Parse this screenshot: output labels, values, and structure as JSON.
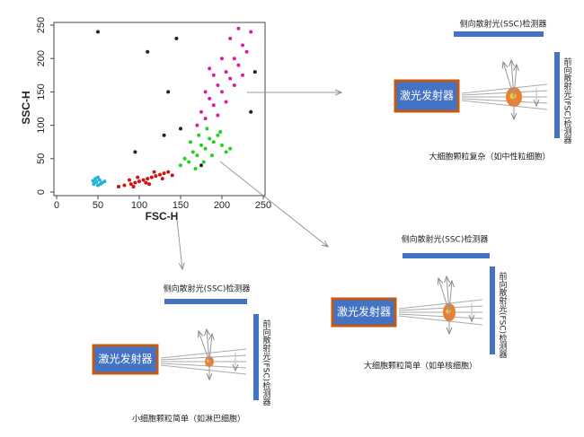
{
  "chart_data": {
    "type": "scatter",
    "x_label": "FSC-H",
    "y_label": "SSC-H",
    "xlim": [
      0,
      250
    ],
    "ylim": [
      0,
      250
    ],
    "xticks": [
      0,
      50,
      100,
      150,
      200,
      250
    ],
    "yticks": [
      0,
      50,
      100,
      150,
      200,
      250
    ],
    "series": [
      {
        "color": "#22b5d6",
        "x": [
          45,
          48,
          50,
          52,
          55,
          47,
          53,
          58,
          50,
          44
        ],
        "values": [
          12,
          15,
          10,
          18,
          14,
          20,
          12,
          16,
          22,
          17
        ]
      },
      {
        "color": "#d41010",
        "x": [
          75,
          82,
          90,
          95,
          100,
          105,
          110,
          115,
          120,
          125,
          130,
          135,
          88,
          98,
          108,
          118,
          128,
          140,
          93,
          112
        ],
        "values": [
          8,
          10,
          12,
          14,
          16,
          18,
          20,
          22,
          24,
          26,
          28,
          30,
          18,
          22,
          14,
          30,
          20,
          25,
          8,
          12
        ]
      },
      {
        "color": "#22d022",
        "x": [
          150,
          155,
          160,
          165,
          170,
          175,
          180,
          185,
          190,
          195,
          200,
          205,
          168,
          178,
          188,
          198,
          162,
          172,
          182,
          210
        ],
        "values": [
          40,
          50,
          45,
          60,
          55,
          70,
          65,
          80,
          75,
          85,
          70,
          60,
          35,
          45,
          55,
          90,
          75,
          85,
          95,
          65
        ]
      },
      {
        "color": "#d6209e",
        "x": [
          170,
          175,
          180,
          185,
          190,
          195,
          200,
          205,
          210,
          215,
          220,
          225,
          230,
          235,
          180,
          190,
          200,
          210,
          220,
          195,
          205,
          215,
          185,
          225
        ],
        "values": [
          100,
          120,
          110,
          140,
          130,
          160,
          150,
          180,
          170,
          200,
          190,
          220,
          210,
          240,
          150,
          175,
          200,
          230,
          245,
          115,
          135,
          160,
          185,
          175
        ]
      },
      {
        "color": "#222222",
        "x": [
          50,
          110,
          130,
          135,
          150,
          145,
          240,
          95,
          235,
          175
        ],
        "values": [
          240,
          210,
          85,
          150,
          95,
          230,
          180,
          60,
          120,
          40
        ]
      }
    ]
  },
  "diagrams": [
    {
      "title": "侧向散射光(SSC)检测器",
      "laser": "激光发射器",
      "detector": "前向散射光(FSC)检测器",
      "caption": "大细胞颗粒复杂（如中性粒细胞）"
    },
    {
      "title": "侧向散射光(SSC)检测器",
      "laser": "激光发射器",
      "detector": "前向散射光(FSC)检测器",
      "caption": "大细胞颗粒简单（如单核细胞）"
    },
    {
      "title": "侧向散射光(SSC)检测器",
      "laser": "激光发射器",
      "detector": "前向散射光(FSC)检测器",
      "caption": "小细胞颗粒简单（如淋巴细胞）"
    }
  ]
}
